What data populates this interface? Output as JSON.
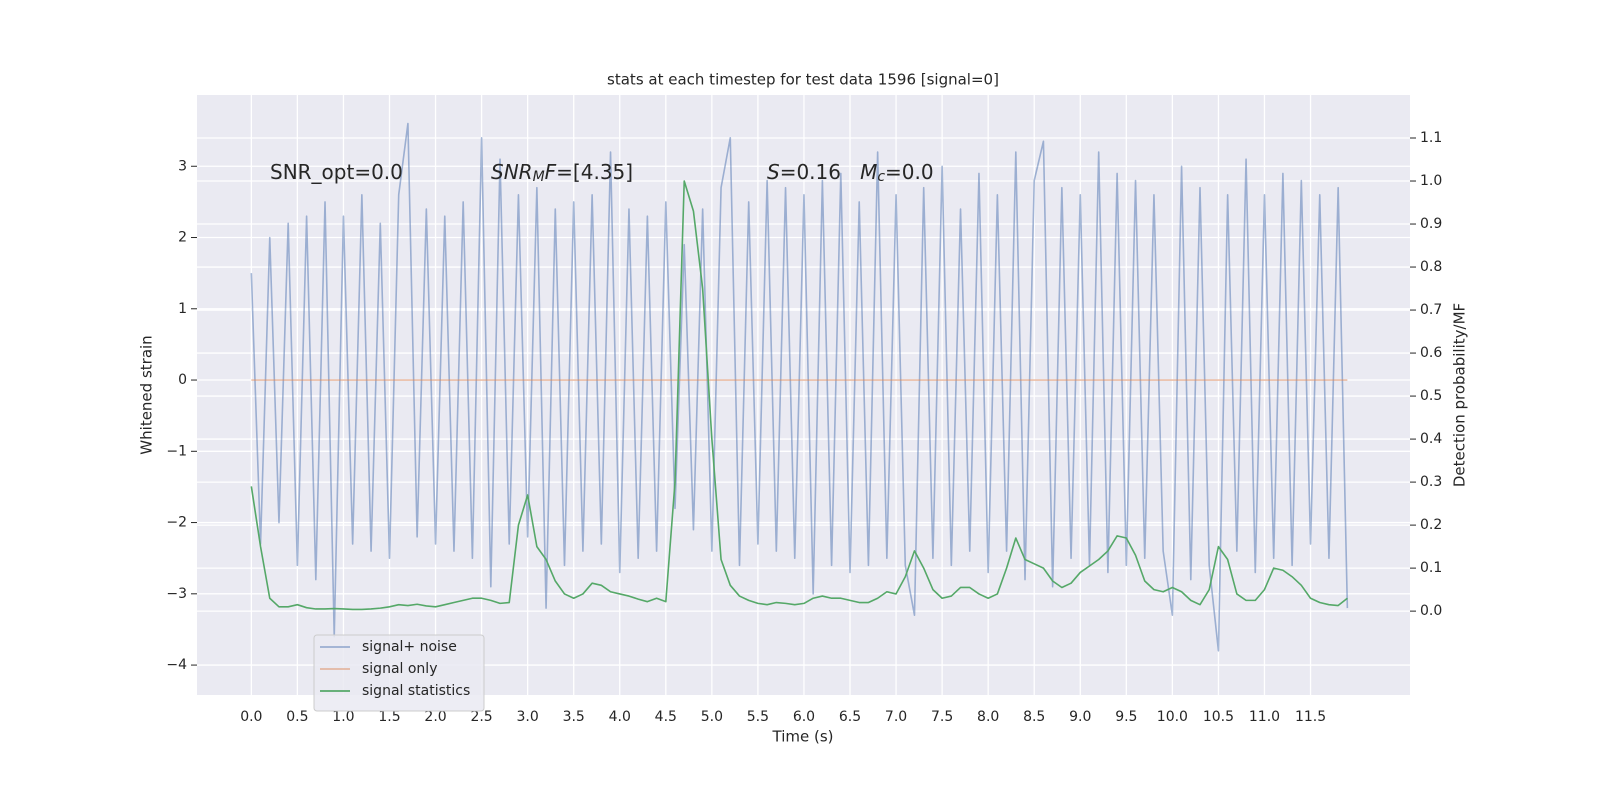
{
  "chart_data": {
    "type": "line",
    "title": "stats at each timestep for test data 1596 [signal=0]",
    "xlabel": "Time (s)",
    "ylabel": "Whitened strain",
    "y2label": "Detection probability/MF",
    "xlim": [
      -0.59,
      12.58
    ],
    "ylim": [
      -4.42,
      4.0
    ],
    "y2lim": [
      -0.195,
      1.2
    ],
    "xticks": [
      {
        "value": 0,
        "label": "0.0"
      },
      0.5,
      {
        "value": 1,
        "label": "1.0"
      },
      1.5,
      {
        "value": 2,
        "label": "2.0"
      },
      2.5,
      {
        "value": 3,
        "label": "3.0"
      },
      3.5,
      {
        "value": 4,
        "label": "4.0"
      },
      4.5,
      {
        "value": 5,
        "label": "5.0"
      },
      5.5,
      {
        "value": 6,
        "label": "6.0"
      },
      6.5,
      {
        "value": 7,
        "label": "7.0"
      },
      7.5,
      {
        "value": 8,
        "label": "8.0"
      },
      8.5,
      {
        "value": 9,
        "label": "9.0"
      },
      9.5,
      {
        "value": 10,
        "label": "10.0"
      },
      10.5,
      {
        "value": 11,
        "label": "11.0"
      },
      11.5
    ],
    "yticks": [
      {
        "value": -4,
        "label": "−4"
      },
      {
        "value": -3,
        "label": "−3"
      },
      {
        "value": -2,
        "label": "−2"
      },
      {
        "value": -1,
        "label": "−1"
      },
      0,
      1,
      2,
      3
    ],
    "y2ticks": [
      {
        "value": 0,
        "label": "0.0"
      },
      0.1,
      0.2,
      0.3,
      0.4,
      0.5,
      0.6,
      0.7,
      0.8,
      0.9,
      {
        "value": 1,
        "label": "1.0"
      },
      1.1
    ],
    "grid": true,
    "legend": "lower left",
    "x": [
      0,
      0.1,
      0.2,
      0.3,
      0.4,
      0.5,
      0.6,
      0.7,
      0.8,
      0.9,
      1,
      1.1,
      1.2,
      1.3,
      1.4,
      1.5,
      1.6,
      1.7,
      1.8,
      1.9,
      2,
      2.1,
      2.2,
      2.3,
      2.4,
      2.5,
      2.6,
      2.7,
      2.8,
      2.9,
      3,
      3.1,
      3.2,
      3.3,
      3.4,
      3.5,
      3.6,
      3.7,
      3.8,
      3.9,
      4,
      4.1,
      4.2,
      4.3,
      4.4,
      4.5,
      4.6,
      4.7,
      4.8,
      4.9,
      5,
      5.1,
      5.2,
      5.3,
      5.4,
      5.5,
      5.6,
      5.7,
      5.8,
      5.9,
      6,
      6.1,
      6.2,
      6.3,
      6.4,
      6.5,
      6.6,
      6.7,
      6.8,
      6.9,
      7,
      7.1,
      7.2,
      7.3,
      7.4,
      7.5,
      7.6,
      7.7,
      7.8,
      7.9,
      8,
      8.1,
      8.2,
      8.3,
      8.4,
      8.5,
      8.6,
      8.7,
      8.8,
      8.9,
      9,
      9.1,
      9.2,
      9.3,
      9.4,
      9.5,
      9.6,
      9.7,
      9.8,
      9.9,
      10,
      10.1,
      10.2,
      10.3,
      10.4,
      10.5,
      10.6,
      10.7,
      10.8,
      10.9,
      11,
      11.1,
      11.2,
      11.3,
      11.4,
      11.5,
      11.6,
      11.7,
      11.8,
      11.9
    ],
    "series": [
      {
        "name": "signal+ noise",
        "color": "#4c72b0",
        "opacity": 0.5,
        "values": [
          1.5,
          -2.3,
          2.0,
          -2.0,
          2.2,
          -2.6,
          2.3,
          -2.8,
          2.5,
          -3.6,
          2.3,
          -2.3,
          2.6,
          -2.4,
          2.2,
          -2.5,
          2.6,
          3.6,
          -2.2,
          2.4,
          -2.3,
          2.3,
          -2.4,
          2.5,
          -2.5,
          3.4,
          -2.9,
          3.1,
          -2.3,
          2.6,
          -2.2,
          2.7,
          -3.2,
          2.4,
          -2.6,
          2.5,
          -2.4,
          2.6,
          -2.3,
          3.2,
          -2.7,
          2.4,
          -2.5,
          2.3,
          -2.4,
          2.5,
          -1.8,
          1.9,
          -2.1,
          2.4,
          -2.4,
          2.7,
          3.4,
          -2.6,
          2.5,
          -2.3,
          2.8,
          -2.4,
          2.7,
          -2.5,
          2.6,
          -3.0,
          2.8,
          -2.6,
          2.9,
          -2.7,
          2.5,
          -2.6,
          3.2,
          -2.5,
          2.6,
          -2.6,
          -3.3,
          2.7,
          -2.5,
          3.0,
          -2.6,
          2.4,
          -2.4,
          2.9,
          -2.7,
          2.6,
          -2.4,
          3.2,
          -2.8,
          2.8,
          3.35,
          -2.9,
          2.7,
          -2.5,
          2.6,
          -2.6,
          3.2,
          -2.7,
          2.9,
          -2.6,
          2.8,
          -2.5,
          2.6,
          -2.4,
          -3.3,
          3.0,
          -2.8,
          2.7,
          -2.6,
          -3.8,
          2.6,
          -2.4,
          3.1,
          -2.7,
          2.6,
          -2.5,
          2.9,
          -2.6,
          2.8,
          -2.3,
          2.6,
          -2.5,
          2.7,
          -3.2
        ]
      },
      {
        "name": "signal only",
        "color": "#dd8452",
        "opacity": 0.5,
        "x": [
          0,
          11.9
        ],
        "values": [
          0,
          0
        ]
      },
      {
        "name": "signal statistics",
        "color": "#55a868",
        "opacity": 1,
        "axis": "y2",
        "values": [
          0.29,
          0.15,
          0.03,
          0.01,
          0.01,
          0.015,
          0.008,
          0.005,
          0.005,
          0.006,
          0.005,
          0.004,
          0.004,
          0.005,
          0.007,
          0.01,
          0.015,
          0.013,
          0.016,
          0.012,
          0.01,
          0.015,
          0.02,
          0.025,
          0.03,
          0.03,
          0.025,
          0.018,
          0.02,
          0.2,
          0.27,
          0.15,
          0.12,
          0.07,
          0.04,
          0.03,
          0.04,
          0.065,
          0.06,
          0.045,
          0.04,
          0.035,
          0.028,
          0.022,
          0.03,
          0.022,
          0.3,
          1.0,
          0.93,
          0.75,
          0.4,
          0.12,
          0.06,
          0.035,
          0.025,
          0.018,
          0.015,
          0.02,
          0.018,
          0.015,
          0.018,
          0.03,
          0.035,
          0.03,
          0.03,
          0.025,
          0.02,
          0.02,
          0.03,
          0.045,
          0.04,
          0.08,
          0.14,
          0.1,
          0.05,
          0.03,
          0.035,
          0.055,
          0.055,
          0.04,
          0.03,
          0.04,
          0.1,
          0.17,
          0.12,
          0.11,
          0.1,
          0.07,
          0.055,
          0.065,
          0.09,
          0.105,
          0.12,
          0.14,
          0.175,
          0.17,
          0.13,
          0.07,
          0.05,
          0.045,
          0.055,
          0.045,
          0.025,
          0.015,
          0.05,
          0.15,
          0.12,
          0.04,
          0.025,
          0.025,
          0.05,
          0.1,
          0.095,
          0.08,
          0.06,
          0.03,
          0.02,
          0.015,
          0.013,
          0.03
        ]
      }
    ],
    "annotations": [
      {
        "segments": [
          {
            "t": "SNR_opt=0.0"
          }
        ]
      },
      {
        "segments": [
          {
            "t": "SNR",
            "italic": true
          },
          {
            "t": "M",
            "italic": true,
            "sub": true
          },
          {
            "t": "F",
            "italic": true
          },
          {
            "t": "=[4.35]"
          }
        ]
      },
      {
        "segments": [
          {
            "t": "S",
            "italic": true
          },
          {
            "t": "=0.16   "
          },
          {
            "t": "M",
            "italic": true
          },
          {
            "t": "c",
            "italic": true,
            "sub": true
          },
          {
            "t": "=0.0"
          }
        ]
      }
    ]
  }
}
